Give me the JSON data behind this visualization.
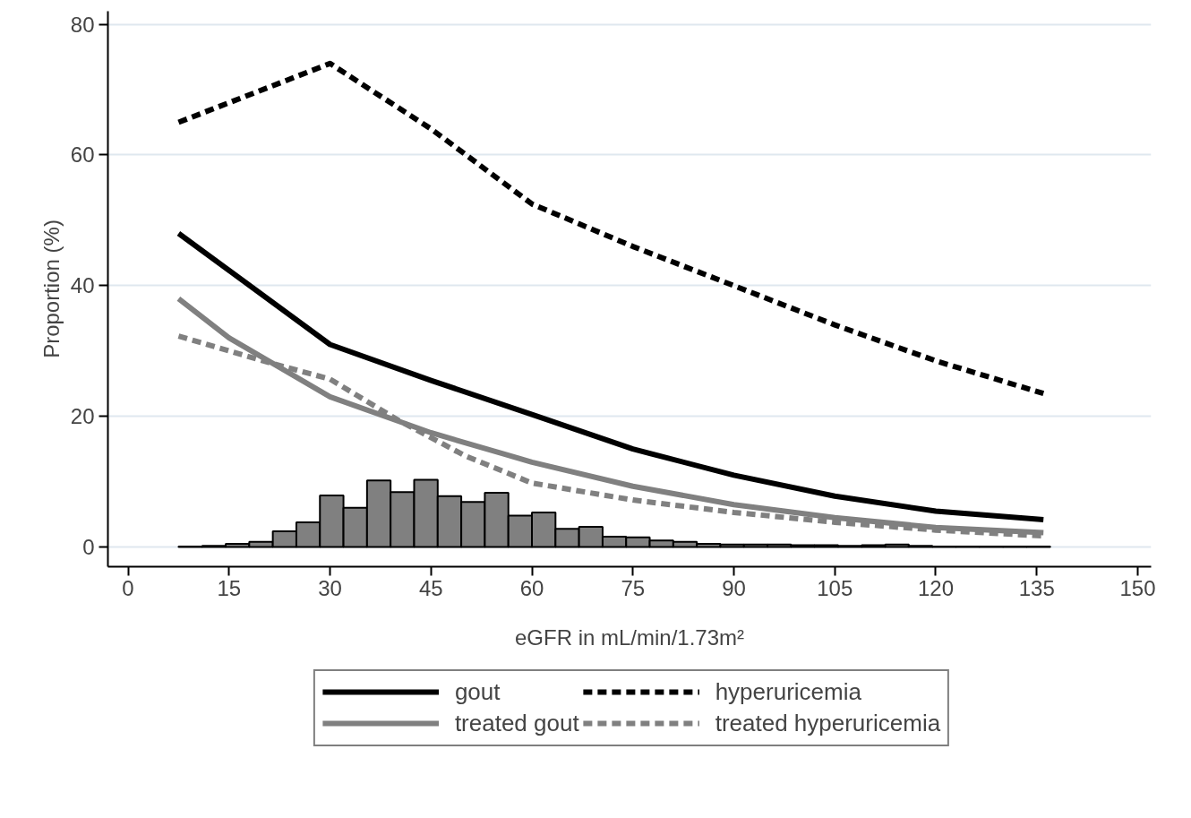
{
  "chart_data": {
    "type": "line",
    "xlabel": "eGFR in mL/min/1.73m²",
    "ylabel": "Proportion (%)",
    "xlim": [
      -3,
      152
    ],
    "ylim": [
      -3,
      82
    ],
    "xticks": [
      0,
      15,
      30,
      45,
      60,
      75,
      90,
      105,
      120,
      135,
      150
    ],
    "yticks": [
      0,
      20,
      40,
      60,
      80
    ],
    "grid": "y",
    "legend": "bottom",
    "series": [
      {
        "type": "histogram",
        "color": "#808080",
        "bins": [
          7.5,
          11,
          14.5,
          18,
          21.5,
          25,
          28.5,
          32,
          35.5,
          39,
          42.5,
          46,
          49.5,
          53,
          56.5,
          60,
          63.5,
          67,
          70.5,
          74,
          77.5,
          81,
          84.5,
          88,
          91.5,
          95,
          98.5,
          102,
          105.5,
          109,
          112.5,
          116,
          119.5,
          123,
          126.5,
          130,
          133.5,
          137
        ],
        "values": [
          0.1,
          0.2,
          0.5,
          0.8,
          2.4,
          3.8,
          7.9,
          6.0,
          10.2,
          8.4,
          10.3,
          7.8,
          6.9,
          8.3,
          4.8,
          5.3,
          2.8,
          3.1,
          1.6,
          1.5,
          1.0,
          0.8,
          0.5,
          0.4,
          0.4,
          0.4,
          0.3,
          0.3,
          0.2,
          0.3,
          0.4,
          0.2,
          0.1,
          0.1,
          0.1,
          0.1,
          0.1
        ]
      },
      {
        "name": "gout",
        "color": "#000000",
        "line_style": "solid",
        "x": [
          7.5,
          30,
          45,
          60,
          75,
          90,
          105,
          120,
          136
        ],
        "values": [
          48,
          31,
          25.5,
          20.3,
          15,
          11,
          7.8,
          5.5,
          4.2
        ]
      },
      {
        "name": "treated gout",
        "color": "#808080",
        "line_style": "solid",
        "x": [
          7.5,
          15,
          30,
          45,
          60,
          75,
          90,
          105,
          120,
          136
        ],
        "values": [
          38,
          32,
          23,
          17.5,
          13,
          9.3,
          6.5,
          4.5,
          3,
          2.2
        ]
      },
      {
        "name": "hyperuricemia",
        "color": "#000000",
        "line_style": "dashed",
        "x": [
          7.5,
          30,
          45,
          60,
          75,
          90,
          105,
          120,
          136
        ],
        "values": [
          65,
          74,
          64,
          52.5,
          46,
          40,
          34,
          28.5,
          23.5
        ]
      },
      {
        "name": "treated hyperuricemia",
        "color": "#808080",
        "line_style": "dashed",
        "x": [
          7.5,
          20,
          30,
          40,
          50,
          60,
          75,
          90,
          105,
          120,
          136
        ],
        "values": [
          32.3,
          28.5,
          25.7,
          19.5,
          14,
          9.8,
          7.2,
          5.3,
          3.8,
          2.6,
          1.7
        ]
      }
    ]
  }
}
